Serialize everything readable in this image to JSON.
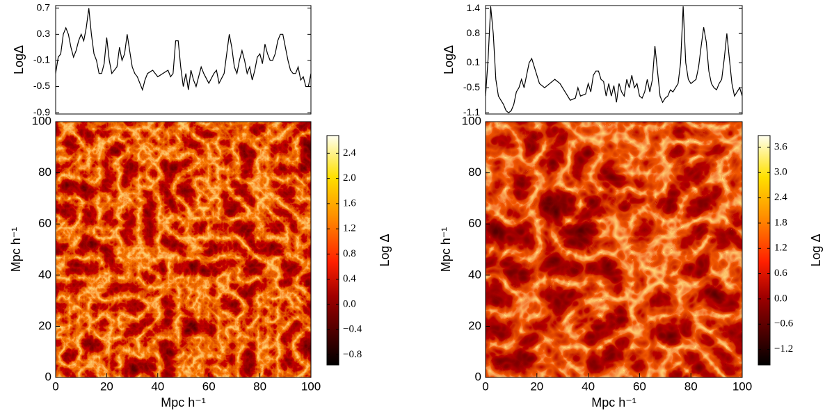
{
  "chart_data": [
    {
      "type": "line",
      "ylabel": "LogΔ",
      "xlim": [
        0,
        100
      ],
      "ylim": [
        -0.92,
        0.74
      ],
      "yticks": [
        0.7,
        0.3,
        -0.1,
        -0.5,
        -0.9
      ],
      "color": "#000000",
      "x": [
        0,
        1,
        2,
        3,
        4,
        5,
        6,
        7,
        8,
        9,
        10,
        11,
        12,
        13,
        14,
        15,
        16,
        17,
        18,
        19,
        20,
        21,
        22,
        24,
        25,
        26,
        27,
        28,
        29,
        30,
        31,
        32,
        33,
        34,
        35,
        36,
        38,
        40,
        42,
        44,
        45,
        46,
        47,
        48,
        49,
        50,
        51,
        52,
        53,
        54,
        55,
        57,
        58,
        60,
        62,
        63,
        64,
        66,
        67,
        68,
        69,
        70,
        71,
        72,
        73,
        74,
        75,
        76,
        77,
        78,
        79,
        80,
        81,
        82,
        83,
        84,
        85,
        86,
        87,
        88,
        89,
        90,
        91,
        92,
        93,
        94,
        95,
        96,
        97,
        98,
        99,
        100
      ],
      "values": [
        -0.3,
        -0.05,
        0.0,
        0.3,
        0.4,
        0.3,
        0.1,
        -0.05,
        0.05,
        0.2,
        0.3,
        0.2,
        0.4,
        0.7,
        0.3,
        0.0,
        -0.1,
        -0.3,
        -0.3,
        -0.15,
        0.25,
        -0.1,
        -0.3,
        -0.2,
        0.1,
        -0.1,
        0.0,
        0.3,
        0.05,
        -0.2,
        -0.3,
        -0.35,
        -0.45,
        -0.55,
        -0.4,
        -0.3,
        -0.25,
        -0.35,
        -0.3,
        -0.25,
        -0.35,
        -0.3,
        0.2,
        0.2,
        -0.2,
        -0.5,
        -0.3,
        -0.55,
        -0.25,
        -0.4,
        -0.5,
        -0.2,
        -0.3,
        -0.45,
        -0.3,
        -0.25,
        -0.45,
        -0.3,
        0.0,
        0.3,
        0.1,
        -0.2,
        -0.3,
        -0.1,
        0.05,
        -0.1,
        -0.3,
        -0.2,
        -0.4,
        -0.25,
        -0.05,
        0.0,
        -0.15,
        0.15,
        0.0,
        -0.1,
        -0.1,
        0.0,
        0.2,
        0.3,
        0.3,
        0.1,
        -0.1,
        -0.25,
        -0.3,
        -0.3,
        -0.2,
        -0.4,
        -0.35,
        -0.5,
        -0.5,
        -0.3
      ]
    },
    {
      "type": "heatmap",
      "xlabel": "Mpc h⁻¹",
      "ylabel": "Mpc h⁻¹",
      "xlim": [
        0,
        100
      ],
      "ylim": [
        0,
        100
      ],
      "xticks": [
        0,
        20,
        40,
        60,
        80,
        100
      ],
      "yticks": [
        0,
        20,
        40,
        60,
        80,
        100
      ],
      "colorbar_label": "Log Δ",
      "clim": [
        -0.96,
        2.68
      ],
      "cticks": [
        2.4,
        {
          "value": 2,
          "label": "2.0"
        },
        1.6,
        1.2,
        0.8,
        0.4,
        {
          "value": 0,
          "label": "0.0"
        },
        {
          "value": -0.4,
          "label": "−0.4"
        },
        {
          "value": -0.8,
          "label": "−0.8"
        }
      ]
    },
    {
      "type": "line",
      "ylabel": "LogΔ",
      "xlim": [
        0,
        100
      ],
      "ylim": [
        -1.13,
        1.47
      ],
      "yticks": [
        1.4,
        0.8,
        0.1,
        -0.5,
        -1.1
      ],
      "color": "#000000",
      "x": [
        0,
        1,
        2,
        3,
        4,
        5,
        6,
        7,
        8,
        9,
        10,
        11,
        12,
        13,
        14,
        15,
        16,
        17,
        18,
        19,
        20,
        21,
        23,
        25,
        27,
        29,
        31,
        33,
        35,
        36,
        37,
        39,
        40,
        41,
        42,
        43,
        44,
        45,
        46,
        47,
        48,
        49,
        50,
        51,
        52,
        53,
        54,
        55,
        56,
        57,
        58,
        59,
        60,
        61,
        62,
        63,
        64,
        65,
        66,
        67,
        68,
        69,
        70,
        71,
        72,
        73,
        75,
        76,
        77,
        78,
        79,
        80,
        82,
        83,
        84,
        85,
        86,
        87,
        88,
        89,
        90,
        91,
        92,
        93,
        94,
        95,
        96,
        97,
        98,
        99,
        100
      ],
      "values": [
        -0.7,
        0.2,
        1.45,
        0.8,
        -0.3,
        -0.7,
        -0.8,
        -0.9,
        -1.05,
        -1.1,
        -1.05,
        -0.9,
        -0.6,
        -0.5,
        -0.3,
        -0.5,
        -0.2,
        0.1,
        0.2,
        0.0,
        -0.2,
        -0.4,
        -0.5,
        -0.4,
        -0.3,
        -0.4,
        -0.6,
        -0.8,
        -0.75,
        -0.5,
        -0.7,
        -0.65,
        -0.4,
        -0.6,
        -0.2,
        -0.1,
        -0.1,
        -0.3,
        -0.35,
        -0.7,
        -0.4,
        -0.7,
        -0.45,
        -0.85,
        -0.4,
        -0.6,
        -0.7,
        -0.3,
        -0.5,
        -0.2,
        -0.5,
        -0.4,
        -0.7,
        -0.75,
        -0.6,
        -0.3,
        -0.6,
        -0.3,
        0.5,
        -0.1,
        -0.7,
        -0.85,
        -0.75,
        -0.7,
        -0.55,
        -0.6,
        -0.4,
        0.1,
        1.45,
        0.1,
        -0.3,
        -0.4,
        -0.3,
        0.0,
        0.5,
        0.95,
        0.6,
        -0.1,
        -0.4,
        -0.5,
        -0.55,
        -0.4,
        -0.3,
        0.2,
        0.8,
        0.2,
        -0.4,
        -0.7,
        -0.6,
        -0.5,
        -0.7
      ]
    },
    {
      "type": "heatmap",
      "xlabel": "Mpc h⁻¹",
      "ylabel": "Mpc h⁻¹",
      "xlim": [
        0,
        100
      ],
      "ylim": [
        0,
        100
      ],
      "xticks": [
        0,
        20,
        40,
        60,
        80,
        100
      ],
      "yticks": [
        0,
        20,
        40,
        60,
        80,
        100
      ],
      "colorbar_label": "Log Δ",
      "clim": [
        -1.57,
        3.88
      ],
      "cticks": [
        3.6,
        {
          "value": 3,
          "label": "3.0"
        },
        2.4,
        1.8,
        1.2,
        0.6,
        {
          "value": 0,
          "label": "0.0"
        },
        {
          "value": -0.6,
          "label": "−0.6"
        },
        {
          "value": -1.2,
          "label": "−1.2"
        }
      ]
    }
  ]
}
